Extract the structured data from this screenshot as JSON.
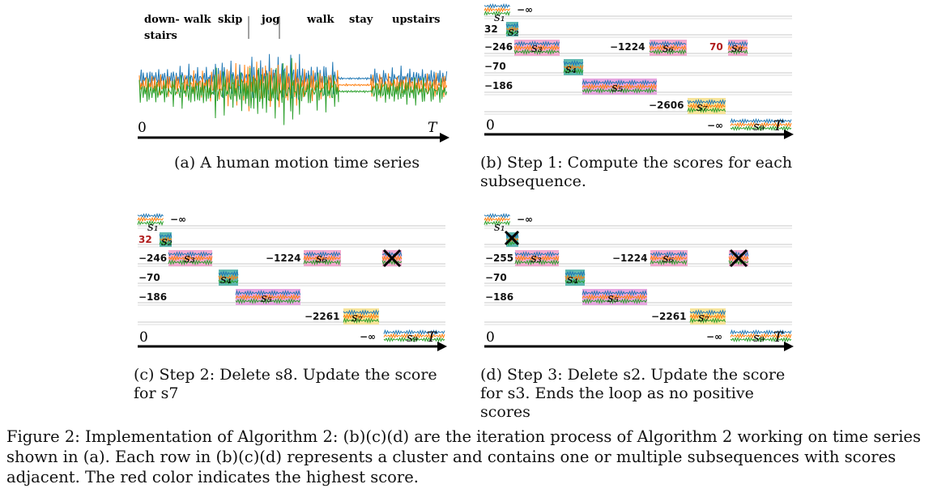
{
  "panel_a": {
    "activities": [
      "down-\nstairs",
      "walk",
      "skip",
      "jog",
      "walk",
      "stay",
      "upstairs"
    ],
    "axis_start": "0",
    "axis_end": "T",
    "caption": "(a) A human motion time series"
  },
  "panel_b": {
    "caption": "(b) Step 1: Compute the scores for each subsequence.",
    "axis_start": "0",
    "scores": [
      "−∞",
      "32",
      "−246",
      "−1224",
      "70",
      "−70",
      "−186",
      "−2606",
      "−∞"
    ],
    "segment_labels": [
      "s1",
      "s2",
      "s3",
      "s4",
      "s5",
      "s6",
      "s7",
      "s8",
      "s9",
      "T"
    ]
  },
  "panel_c": {
    "caption": "(c) Step 2: Delete s8. Update the score for s7",
    "axis_start": "0",
    "scores": [
      "−∞",
      "32",
      "−246",
      "−1224",
      "−70",
      "−186",
      "−2261",
      "−∞"
    ],
    "segment_labels": [
      "s1",
      "s2",
      "s3",
      "s4",
      "s5",
      "s6",
      "s7",
      "s9",
      "T"
    ]
  },
  "panel_d": {
    "caption": "(d) Step 3: Delete s2. Update the score for s3. Ends the loop as no positive scores",
    "axis_start": "0",
    "scores": [
      "−∞",
      "−255",
      "−1224",
      "−70",
      "−186",
      "−2261",
      "−∞"
    ],
    "segment_labels": [
      "s1",
      "s3",
      "s4",
      "s5",
      "s6",
      "s7",
      "s9",
      "T"
    ]
  },
  "figure_caption": "Figure 2: Implementation of Algorithm 2: (b)(c)(d) are the iteration process of Algorithm 2 working on time series shown in (a). Each row in (b)(c)(d) represents a cluster and contains one or multiple subsequences with scores adjacent. The red color indicates the highest score.",
  "colors": {
    "series_blue": "#1f77b4",
    "series_orange": "#ff7f0e",
    "series_green": "#2ca02c",
    "highlight_red": "#b01c1c",
    "pink_bg": "#f2a9cf",
    "teal_bg": "#5fb8b0",
    "yellow_bg": "#f7e49a"
  }
}
